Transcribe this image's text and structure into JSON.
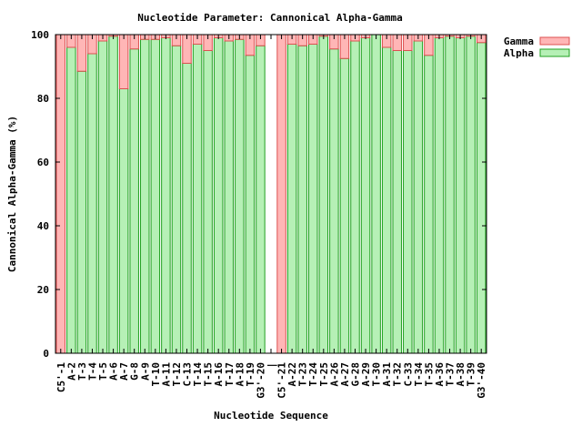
{
  "chart_data": {
    "type": "bar",
    "stacked": true,
    "title": "Nucleotide Parameter: Cannonical Alpha-Gamma",
    "xlabel": "Nucleotide Sequence",
    "ylabel": "Cannonical Alpha-Gamma (%)",
    "ylim": [
      0,
      100
    ],
    "yticks": [
      0,
      20,
      40,
      60,
      80,
      100
    ],
    "grid": false,
    "legend_position": "top-right, outside plot",
    "categories": [
      "C5'-1",
      "A-2",
      "T-3",
      "T-4",
      "T-5",
      "A-6",
      "A-7",
      "G-8",
      "A-9",
      "T-10",
      "A-11",
      "T-12",
      "C-13",
      "T-14",
      "T-15",
      "A-16",
      "T-17",
      "A-18",
      "T-19",
      "G3'-20",
      "|",
      "C5'-21",
      "A-22",
      "T-23",
      "T-24",
      "T-25",
      "A-26",
      "A-27",
      "G-28",
      "A-29",
      "T-30",
      "A-31",
      "T-32",
      "C-33",
      "T-34",
      "T-35",
      "A-36",
      "T-37",
      "A-38",
      "T-39",
      "G3'-40"
    ],
    "series": [
      {
        "name": "Gamma",
        "color": "#ffb6b6",
        "edge": "#dc5050",
        "values": [
          100,
          4,
          11.5,
          6,
          2,
          0.5,
          17,
          4.5,
          1.5,
          1.5,
          1,
          3.5,
          9,
          3,
          5,
          1,
          2,
          1.5,
          6.5,
          3.5,
          0,
          100,
          3,
          3.5,
          3,
          0.5,
          4.5,
          7.5,
          2,
          1,
          0,
          4,
          5,
          5,
          2,
          6.5,
          1,
          0.5,
          1,
          0.5,
          2.5
        ]
      },
      {
        "name": "Alpha",
        "color": "#b6f0b6",
        "edge": "#20a020",
        "values": [
          0,
          96,
          88.5,
          94,
          98,
          99.5,
          83,
          95.5,
          98.5,
          98.5,
          99,
          96.5,
          91,
          97,
          95,
          99,
          98,
          98.5,
          93.5,
          96.5,
          0,
          0,
          97,
          96.5,
          97,
          99.5,
          95.5,
          92.5,
          98,
          99,
          100,
          96,
          95,
          95,
          98,
          93.5,
          99,
          99.5,
          99,
          99.5,
          97.5
        ]
      }
    ]
  }
}
